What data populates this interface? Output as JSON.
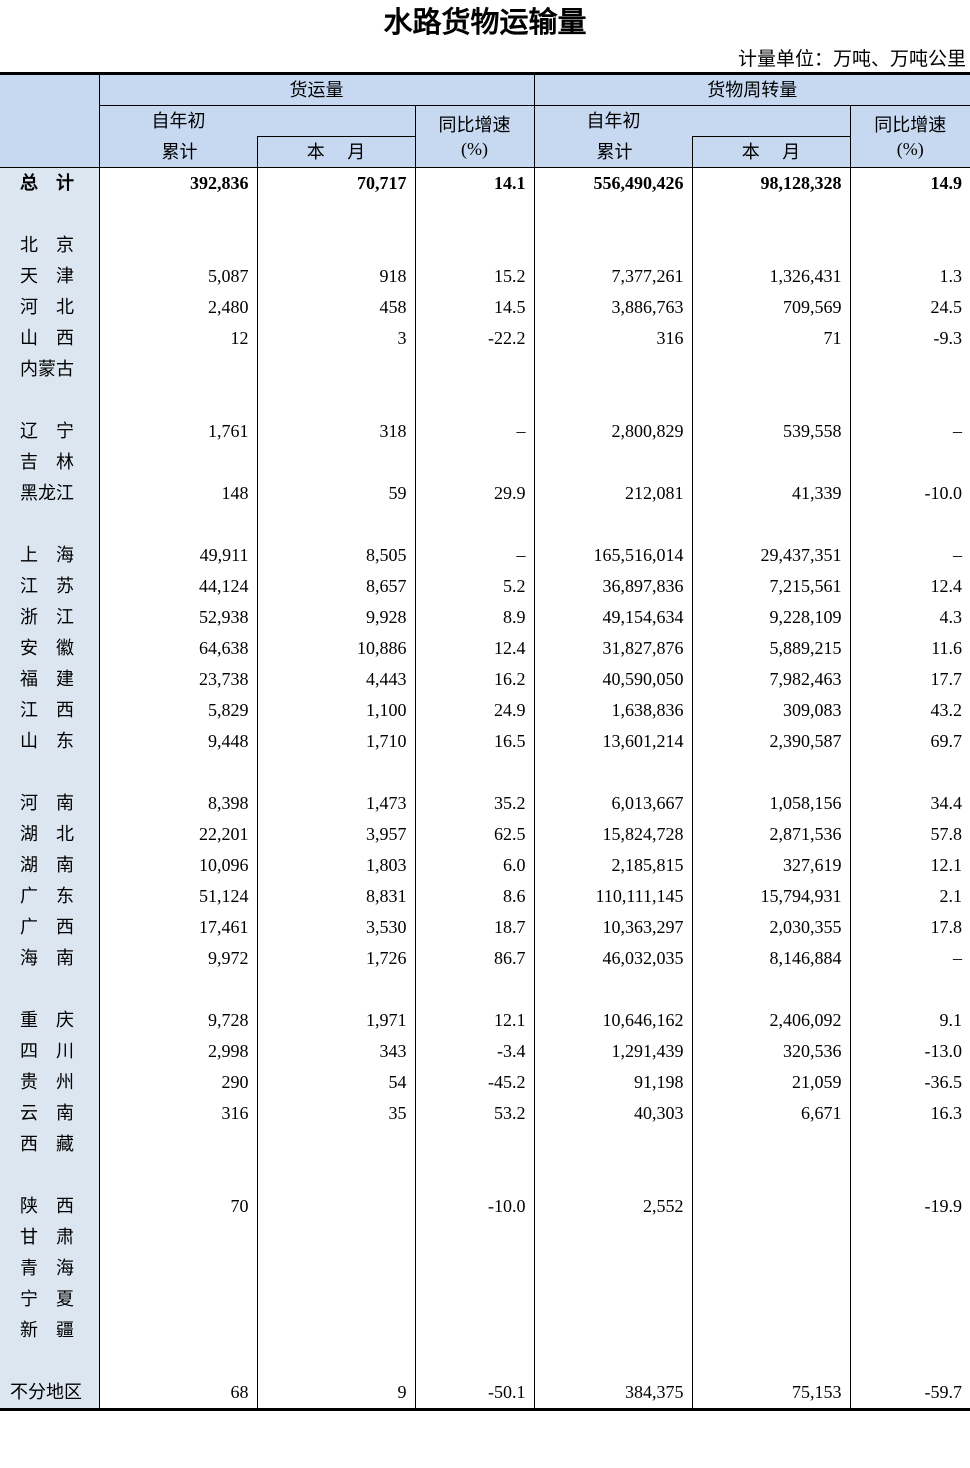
{
  "title": "水路货物运输量",
  "unit": "计量单位：万吨、万吨公里",
  "header": {
    "freight_volume": "货运量",
    "turnover": "货物周转量",
    "ytd_line1": "自年初",
    "ytd_line2": "累计",
    "month": "本　 月",
    "yoy_line1": "同比增速",
    "yoy_line2": "(%)"
  },
  "rows": [
    {
      "region": "总　计",
      "v": [
        "392,836",
        "70,717",
        "14.1",
        "556,490,426",
        "98,128,328",
        "14.9"
      ],
      "total": true
    },
    {
      "region": "",
      "v": [
        "",
        "",
        "",
        "",
        "",
        ""
      ]
    },
    {
      "region": "北　京",
      "v": [
        "",
        "",
        "",
        "",
        "",
        ""
      ]
    },
    {
      "region": "天　津",
      "v": [
        "5,087",
        "918",
        "15.2",
        "7,377,261",
        "1,326,431",
        "1.3"
      ]
    },
    {
      "region": "河　北",
      "v": [
        "2,480",
        "458",
        "14.5",
        "3,886,763",
        "709,569",
        "24.5"
      ]
    },
    {
      "region": "山　西",
      "v": [
        "12",
        "3",
        "-22.2",
        "316",
        "71",
        "-9.3"
      ]
    },
    {
      "region": "内蒙古",
      "v": [
        "",
        "",
        "",
        "",
        "",
        ""
      ]
    },
    {
      "region": "",
      "v": [
        "",
        "",
        "",
        "",
        "",
        ""
      ]
    },
    {
      "region": "辽　宁",
      "v": [
        "1,761",
        "318",
        "–",
        "2,800,829",
        "539,558",
        "–"
      ]
    },
    {
      "region": "吉　林",
      "v": [
        "",
        "",
        "",
        "",
        "",
        ""
      ]
    },
    {
      "region": "黑龙江",
      "v": [
        "148",
        "59",
        "29.9",
        "212,081",
        "41,339",
        "-10.0"
      ]
    },
    {
      "region": "",
      "v": [
        "",
        "",
        "",
        "",
        "",
        ""
      ]
    },
    {
      "region": "上　海",
      "v": [
        "49,911",
        "8,505",
        "–",
        "165,516,014",
        "29,437,351",
        "–"
      ]
    },
    {
      "region": "江　苏",
      "v": [
        "44,124",
        "8,657",
        "5.2",
        "36,897,836",
        "7,215,561",
        "12.4"
      ]
    },
    {
      "region": "浙　江",
      "v": [
        "52,938",
        "9,928",
        "8.9",
        "49,154,634",
        "9,228,109",
        "4.3"
      ]
    },
    {
      "region": "安　徽",
      "v": [
        "64,638",
        "10,886",
        "12.4",
        "31,827,876",
        "5,889,215",
        "11.6"
      ]
    },
    {
      "region": "福　建",
      "v": [
        "23,738",
        "4,443",
        "16.2",
        "40,590,050",
        "7,982,463",
        "17.7"
      ]
    },
    {
      "region": "江　西",
      "v": [
        "5,829",
        "1,100",
        "24.9",
        "1,638,836",
        "309,083",
        "43.2"
      ]
    },
    {
      "region": "山　东",
      "v": [
        "9,448",
        "1,710",
        "16.5",
        "13,601,214",
        "2,390,587",
        "69.7"
      ]
    },
    {
      "region": "",
      "v": [
        "",
        "",
        "",
        "",
        "",
        ""
      ]
    },
    {
      "region": "河　南",
      "v": [
        "8,398",
        "1,473",
        "35.2",
        "6,013,667",
        "1,058,156",
        "34.4"
      ]
    },
    {
      "region": "湖　北",
      "v": [
        "22,201",
        "3,957",
        "62.5",
        "15,824,728",
        "2,871,536",
        "57.8"
      ]
    },
    {
      "region": "湖　南",
      "v": [
        "10,096",
        "1,803",
        "6.0",
        "2,185,815",
        "327,619",
        "12.1"
      ]
    },
    {
      "region": "广　东",
      "v": [
        "51,124",
        "8,831",
        "8.6",
        "110,111,145",
        "15,794,931",
        "2.1"
      ]
    },
    {
      "region": "广　西",
      "v": [
        "17,461",
        "3,530",
        "18.7",
        "10,363,297",
        "2,030,355",
        "17.8"
      ]
    },
    {
      "region": "海　南",
      "v": [
        "9,972",
        "1,726",
        "86.7",
        "46,032,035",
        "8,146,884",
        "–"
      ]
    },
    {
      "region": "",
      "v": [
        "",
        "",
        "",
        "",
        "",
        ""
      ]
    },
    {
      "region": "重　庆",
      "v": [
        "9,728",
        "1,971",
        "12.1",
        "10,646,162",
        "2,406,092",
        "9.1"
      ]
    },
    {
      "region": "四　川",
      "v": [
        "2,998",
        "343",
        "-3.4",
        "1,291,439",
        "320,536",
        "-13.0"
      ]
    },
    {
      "region": "贵　州",
      "v": [
        "290",
        "54",
        "-45.2",
        "91,198",
        "21,059",
        "-36.5"
      ]
    },
    {
      "region": "云　南",
      "v": [
        "316",
        "35",
        "53.2",
        "40,303",
        "6,671",
        "16.3"
      ]
    },
    {
      "region": "西　藏",
      "v": [
        "",
        "",
        "",
        "",
        "",
        ""
      ]
    },
    {
      "region": "",
      "v": [
        "",
        "",
        "",
        "",
        "",
        ""
      ]
    },
    {
      "region": "陕　西",
      "v": [
        "70",
        "",
        "-10.0",
        "2,552",
        "",
        "-19.9"
      ]
    },
    {
      "region": "甘　肃",
      "v": [
        "",
        "",
        "",
        "",
        "",
        ""
      ]
    },
    {
      "region": "青　海",
      "v": [
        "",
        "",
        "",
        "",
        "",
        ""
      ]
    },
    {
      "region": "宁　夏",
      "v": [
        "",
        "",
        "",
        "",
        "",
        ""
      ]
    },
    {
      "region": "新　疆",
      "v": [
        "",
        "",
        "",
        "",
        "",
        ""
      ]
    },
    {
      "region": "",
      "v": [
        "",
        "",
        "",
        "",
        "",
        ""
      ]
    },
    {
      "region": "不分地区",
      "v": [
        "68",
        "9",
        "-50.1",
        "384,375",
        "75,153",
        "-59.7"
      ]
    }
  ]
}
